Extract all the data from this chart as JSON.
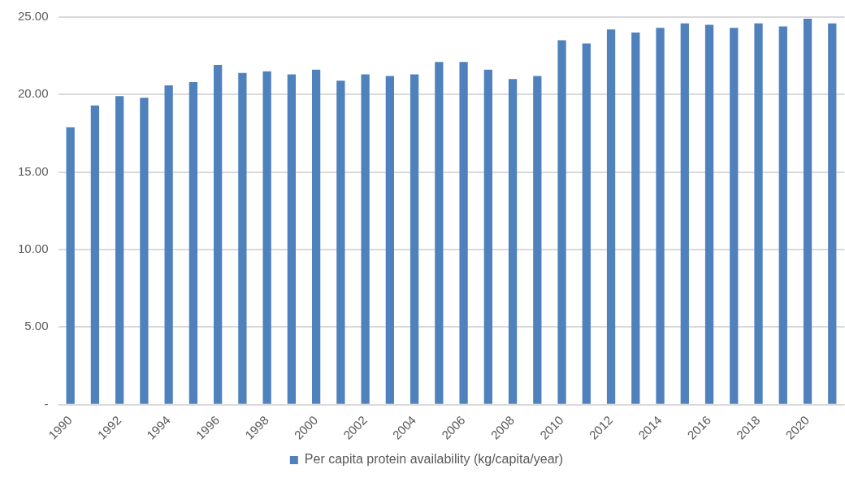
{
  "chart_data": {
    "type": "bar",
    "categories": [
      "1990",
      null,
      "1992",
      null,
      "1994",
      null,
      "1996",
      null,
      "1998",
      null,
      "2000",
      null,
      "2002",
      null,
      "2004",
      null,
      "2006",
      null,
      "2008",
      null,
      "2010",
      null,
      "2012",
      null,
      "2014",
      null,
      "2016",
      null,
      "2018",
      null,
      "2020",
      null
    ],
    "series": [
      {
        "name": "Per capita protein availability (kg/capita/year)",
        "color": "#4f81bd",
        "values": [
          17.9,
          19.3,
          19.9,
          19.8,
          20.6,
          20.8,
          21.9,
          21.4,
          21.5,
          21.3,
          21.6,
          20.9,
          21.3,
          21.2,
          21.3,
          22.1,
          22.1,
          21.6,
          21.0,
          21.2,
          23.5,
          23.3,
          24.2,
          24.0,
          24.3,
          24.6,
          24.5,
          24.3,
          24.6,
          24.4,
          24.9,
          24.6
        ]
      }
    ],
    "ylim": [
      0,
      25
    ],
    "yticks": [
      {
        "value": 0,
        "label": "-"
      },
      {
        "value": 5,
        "label": "5.00"
      },
      {
        "value": 10,
        "label": "10.00"
      },
      {
        "value": 15,
        "label": "15.00"
      },
      {
        "value": 20,
        "label": "20.00"
      },
      {
        "value": 25,
        "label": "25.00"
      }
    ],
    "grid": "y",
    "legend": "bottom"
  }
}
